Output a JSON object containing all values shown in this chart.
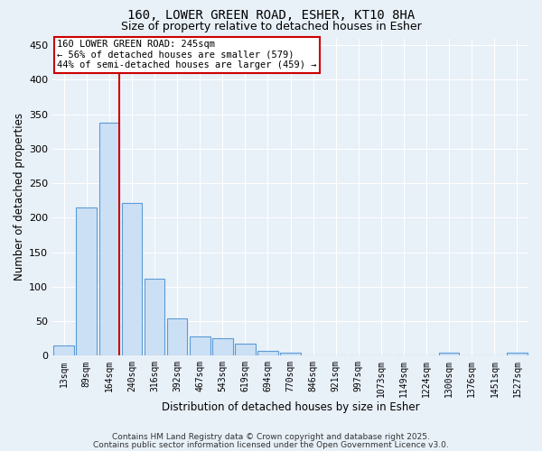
{
  "title1": "160, LOWER GREEN ROAD, ESHER, KT10 8HA",
  "title2": "Size of property relative to detached houses in Esher",
  "xlabel": "Distribution of detached houses by size in Esher",
  "ylabel": "Number of detached properties",
  "bar_labels": [
    "13sqm",
    "89sqm",
    "164sqm",
    "240sqm",
    "316sqm",
    "392sqm",
    "467sqm",
    "543sqm",
    "619sqm",
    "694sqm",
    "770sqm",
    "846sqm",
    "921sqm",
    "997sqm",
    "1073sqm",
    "1149sqm",
    "1224sqm",
    "1300sqm",
    "1376sqm",
    "1451sqm",
    "1527sqm"
  ],
  "bar_values": [
    15,
    215,
    338,
    222,
    112,
    54,
    28,
    25,
    18,
    7,
    4,
    1,
    1,
    1,
    1,
    1,
    0,
    4,
    0,
    0,
    4
  ],
  "bar_color": "#cce0f5",
  "bar_edge_color": "#5b9bd5",
  "vline_x_index": 2,
  "vline_color": "#cc0000",
  "annotation_text": "160 LOWER GREEN ROAD: 245sqm\n← 56% of detached houses are smaller (579)\n44% of semi-detached houses are larger (459) →",
  "annotation_box_color": "#ffffff",
  "annotation_box_edge": "#cc0000",
  "ylim": [
    0,
    460
  ],
  "yticks": [
    0,
    50,
    100,
    150,
    200,
    250,
    300,
    350,
    400,
    450
  ],
  "bg_color": "#e8f0f8",
  "plot_bg_color": "#e8f0f8",
  "grid_color": "#ffffff",
  "footer_line1": "Contains HM Land Registry data © Crown copyright and database right 2025.",
  "footer_line2": "Contains public sector information licensed under the Open Government Licence v3.0."
}
